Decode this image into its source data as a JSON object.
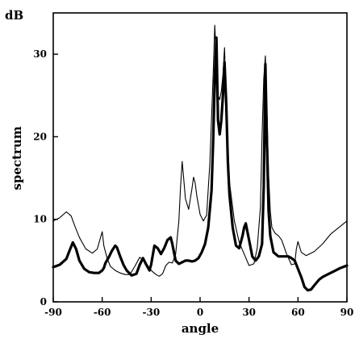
{
  "chart_data": {
    "type": "line",
    "xlabel": "angle",
    "ylabel": "spectrum",
    "yunit": "dB",
    "xlim": [
      -90,
      90
    ],
    "ylim": [
      0,
      35
    ],
    "xticks": [
      -90,
      -60,
      -30,
      0,
      30,
      60,
      90
    ],
    "yticks": [
      0,
      10,
      20,
      30
    ],
    "grid": false,
    "legend": "none",
    "series": [
      {
        "style": "thin",
        "x": [
          -90,
          -86,
          -82,
          -79,
          -77,
          -74,
          -70,
          -66,
          -63,
          -61,
          -60,
          -59,
          -57,
          -55,
          -52,
          -49,
          -46,
          -43,
          -40,
          -37,
          -35,
          -32,
          -30,
          -27,
          -25,
          -23,
          -21,
          -19,
          -17,
          -15,
          -13,
          -12,
          -11,
          -10,
          -9,
          -7,
          -5,
          -4,
          -3,
          -2,
          0,
          2,
          4,
          6,
          8,
          9,
          10,
          11,
          12,
          13,
          14,
          15,
          16,
          18,
          21,
          24,
          27,
          30,
          33,
          35,
          37,
          38,
          39,
          40,
          41,
          42,
          43,
          44,
          46,
          48,
          50,
          53,
          56,
          58,
          59,
          60,
          62,
          65,
          70,
          75,
          80,
          85,
          90
        ],
        "y": [
          9.8,
          10.2,
          10.9,
          10.4,
          9.3,
          7.8,
          6.4,
          5.9,
          6.4,
          7.8,
          8.5,
          6.8,
          5.3,
          4.3,
          3.8,
          3.5,
          3.3,
          3.3,
          4.3,
          5.4,
          5.1,
          4.4,
          3.8,
          3.3,
          3.1,
          3.4,
          4.4,
          4.8,
          4.7,
          5.8,
          9.8,
          13.8,
          17.0,
          14.8,
          12.5,
          11.2,
          13.7,
          15.1,
          14.4,
          12.8,
          10.6,
          9.8,
          10.5,
          16.8,
          27.5,
          33.5,
          29.0,
          25.0,
          24.5,
          25.5,
          27.5,
          30.8,
          24.0,
          14.5,
          9.8,
          7.2,
          5.8,
          4.4,
          4.6,
          6.5,
          11.5,
          20.0,
          27.0,
          29.8,
          23.0,
          15.5,
          11.0,
          9.0,
          8.3,
          8.0,
          7.5,
          5.8,
          4.5,
          4.6,
          6.4,
          7.3,
          6.0,
          5.6,
          6.1,
          7.0,
          8.2,
          9.0,
          9.8
        ]
      },
      {
        "style": "thick",
        "x": [
          -90,
          -86,
          -82,
          -80,
          -78,
          -76,
          -74,
          -71,
          -68,
          -65,
          -62,
          -60,
          -59,
          -58,
          -56,
          -54,
          -52,
          -51,
          -49,
          -47,
          -45,
          -42,
          -39,
          -37,
          -35,
          -33,
          -31,
          -30,
          -28,
          -26,
          -24,
          -22,
          -20,
          -18,
          -17,
          -16,
          -15,
          -13,
          -11,
          -9,
          -7,
          -5,
          -3,
          -1,
          1,
          3,
          5,
          7,
          8,
          9,
          10,
          11,
          12,
          13,
          14,
          15,
          16,
          17,
          18,
          20,
          22,
          24,
          26,
          27,
          28,
          30,
          32,
          34,
          36,
          38,
          39,
          40,
          41,
          42,
          43,
          45,
          48,
          51,
          54,
          56,
          58,
          60,
          62,
          64,
          66,
          68,
          70,
          73,
          75,
          78,
          82,
          86,
          90
        ],
        "y": [
          4.2,
          4.5,
          5.2,
          6.2,
          7.2,
          6.4,
          5.0,
          4.0,
          3.6,
          3.5,
          3.5,
          3.8,
          4.1,
          4.7,
          5.4,
          6.2,
          6.8,
          6.6,
          5.5,
          4.5,
          3.8,
          3.2,
          3.4,
          4.5,
          5.3,
          4.5,
          3.8,
          4.5,
          6.8,
          6.5,
          5.8,
          6.5,
          7.5,
          7.8,
          7.0,
          6.0,
          5.0,
          4.6,
          4.8,
          5.0,
          5.0,
          4.9,
          5.0,
          5.3,
          6.0,
          7.0,
          9.0,
          13.5,
          19.5,
          27.0,
          32.0,
          22.0,
          20.3,
          22.0,
          25.0,
          29.0,
          24.0,
          17.0,
          13.0,
          9.0,
          6.8,
          6.5,
          8.0,
          9.0,
          9.5,
          7.5,
          5.5,
          5.0,
          5.5,
          7.0,
          14.0,
          28.8,
          19.0,
          11.0,
          8.0,
          6.0,
          5.5,
          5.5,
          5.5,
          5.3,
          5.0,
          4.0,
          3.0,
          1.8,
          1.4,
          1.5,
          2.0,
          2.7,
          3.0,
          3.3,
          3.7,
          4.1,
          4.4
        ]
      }
    ]
  }
}
